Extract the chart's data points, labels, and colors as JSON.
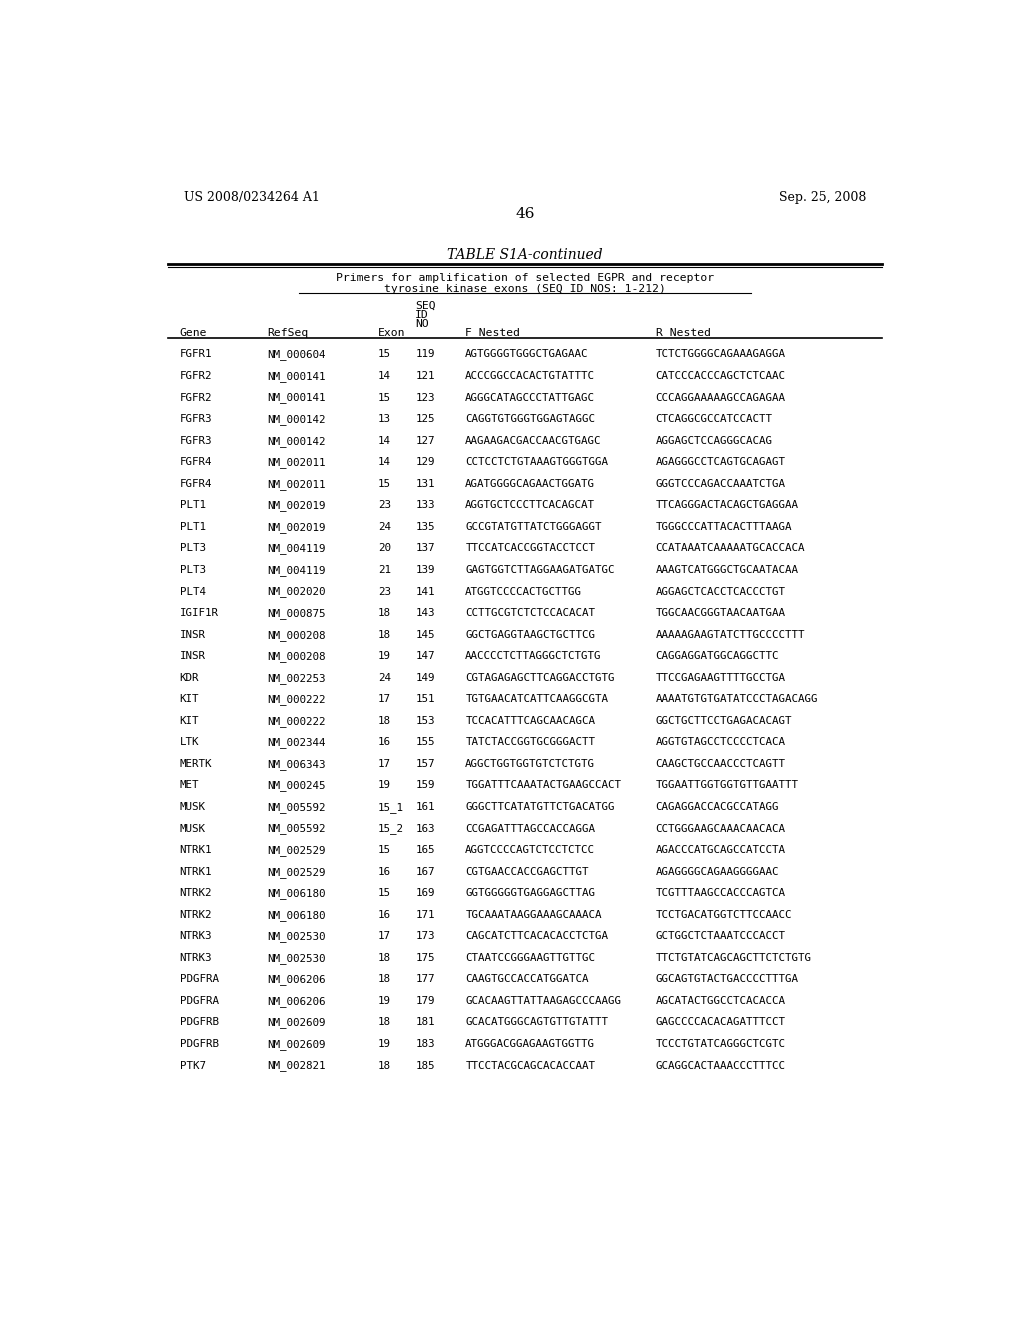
{
  "header_left": "US 2008/0234264 A1",
  "header_right": "Sep. 25, 2008",
  "page_number": "46",
  "table_title": "TABLE S1A-continued",
  "subtitle1": "Primers for amplification of selected EGPR and receptor",
  "subtitle2": "tyrosine kinase exons (SEQ ID NOS: 1-212)",
  "rows": [
    [
      "FGFR1",
      "NM_000604",
      "15",
      "119",
      "AGTGGGGTGGGCTGAGAAC",
      "TCTCTGGGGCAGAAAGAGGA"
    ],
    [
      "FGFR2",
      "NM_000141",
      "14",
      "121",
      "ACCCGGCCACACTGTATTTC",
      "CATCCCACCCAGCTCTCAAC"
    ],
    [
      "FGFR2",
      "NM_000141",
      "15",
      "123",
      "AGGGCATAGCCCTATTGAGC",
      "CCCAGGAAAAAGCCAGAGAA"
    ],
    [
      "FGFR3",
      "NM_000142",
      "13",
      "125",
      "CAGGTGTGGGTGGAGTAGGC",
      "CTCAGGCGCCATCCACTT"
    ],
    [
      "FGFR3",
      "NM_000142",
      "14",
      "127",
      "AAGAAGACGACCAACGTGAGC",
      "AGGAGCTCCAGGGCACAG"
    ],
    [
      "FGFR4",
      "NM_002011",
      "14",
      "129",
      "CCTCCTCTGTAAAGTGGGTGGA",
      "AGAGGGCCTCAGTGCAGAGT"
    ],
    [
      "FGFR4",
      "NM_002011",
      "15",
      "131",
      "AGATGGGGCAGAACTGGATG",
      "GGGTCCCAGACCAAATCTGA"
    ],
    [
      "PLT1",
      "NM_002019",
      "23",
      "133",
      "AGGTGCTCCCTTCACAGCAT",
      "TTCAGGGACTACAGCTGAGGAA"
    ],
    [
      "PLT1",
      "NM_002019",
      "24",
      "135",
      "GCCGTATGTTATCTGGGAGGT",
      "TGGGCCCATTACACTTTAAGA"
    ],
    [
      "PLT3",
      "NM_004119",
      "20",
      "137",
      "TTCCATCACCGGTACCTCCT",
      "CCATAAATCAAAAATGCACCACA"
    ],
    [
      "PLT3",
      "NM_004119",
      "21",
      "139",
      "GAGTGGTCTTAGGAAGATGATGC",
      "AAAGTCATGGGCTGCAATACAA"
    ],
    [
      "PLT4",
      "NM_002020",
      "23",
      "141",
      "ATGGTCCCCACTGCTTGG",
      "AGGAGCTCACCTCACCCTGT"
    ],
    [
      "IGIF1R",
      "NM_000875",
      "18",
      "143",
      "CCTTGCGTCTCTCCACACAT",
      "TGGCAACGGGTAACAATGAA"
    ],
    [
      "INSR",
      "NM_000208",
      "18",
      "145",
      "GGCTGAGGTAAGCTGCTTCG",
      "AAAAAGAAGTATCTTGCCCCTTT"
    ],
    [
      "INSR",
      "NM_000208",
      "19",
      "147",
      "AACCCCTCTTAGGGCTCTGTG",
      "CAGGAGGATGGCAGGCTTC"
    ],
    [
      "KDR",
      "NM_002253",
      "24",
      "149",
      "CGTAGAGAGCTTCAGGACCTGTG",
      "TTCCGAGAAGTTTTGCCTGA"
    ],
    [
      "KIT",
      "NM_000222",
      "17",
      "151",
      "TGTGAACATCATTCAAGGCGTA",
      "AAAATGTGTGATATCCCTAGACAGG"
    ],
    [
      "KIT",
      "NM_000222",
      "18",
      "153",
      "TCCACATTTCAGCAACAGCA",
      "GGCTGCTTCCTGAGACACAGT"
    ],
    [
      "LTK",
      "NM_002344",
      "16",
      "155",
      "TATCTACCGGTGCGGGACTT",
      "AGGTGTAGCCTCCCCTCACA"
    ],
    [
      "MERTK",
      "NM_006343",
      "17",
      "157",
      "AGGCTGGTGGTGTCTCTGTG",
      "CAAGCTGCCAACCCTCAGTT"
    ],
    [
      "MET",
      "NM_000245",
      "19",
      "159",
      "TGGATTTCAAATACTGAAGCCACT",
      "TGGAATTGGTGGTGTTGAATTT"
    ],
    [
      "MUSK",
      "NM_005592",
      "15_1",
      "161",
      "GGGCTTCATATGTTCTGACATGG",
      "CAGAGGACCACGCCATAGG"
    ],
    [
      "MUSK",
      "NM_005592",
      "15_2",
      "163",
      "CCGAGATTTAGCCACCAGGA",
      "CCTGGGAAGCAAACAACACA"
    ],
    [
      "NTRK1",
      "NM_002529",
      "15",
      "165",
      "AGGTCCCCAGTCTCCTCTCC",
      "AGACCCATGCAGCCATCCTA"
    ],
    [
      "NTRK1",
      "NM_002529",
      "16",
      "167",
      "CGTGAACCACCGAGCTTGT",
      "AGAGGGGCAGAAGGGGAAC"
    ],
    [
      "NTRK2",
      "NM_006180",
      "15",
      "169",
      "GGTGGGGGTGAGGAGCTTAG",
      "TCGTTTAAGCCACCCAGTCA"
    ],
    [
      "NTRK2",
      "NM_006180",
      "16",
      "171",
      "TGCAAATAAGGAAAGCAAACA",
      "TCCTGACATGGTCTTCCAACC"
    ],
    [
      "NTRK3",
      "NM_002530",
      "17",
      "173",
      "CAGCATCTTCACACACCTCTGA",
      "GCTGGCTCTAAATCCCACCT"
    ],
    [
      "NTRK3",
      "NM_002530",
      "18",
      "175",
      "CTAATCCGGGAAGTTGTTGC",
      "TTCTGTATCAGCAGCTTCTCTGTG"
    ],
    [
      "PDGFRA",
      "NM_006206",
      "18",
      "177",
      "CAAGTGCCACCATGGATCA",
      "GGCAGTGTACTGACCCCTTTGA"
    ],
    [
      "PDGFRA",
      "NM_006206",
      "19",
      "179",
      "GCACAAGTTATTAAGAGCCCAAGG",
      "AGCATACTGGCCTCACACCA"
    ],
    [
      "PDGFRB",
      "NM_002609",
      "18",
      "181",
      "GCACATGGGCAGTGTTGTATTT",
      "GAGCCCCACACAGATTTCCT"
    ],
    [
      "PDGFRB",
      "NM_002609",
      "19",
      "183",
      "ATGGGACGGAGAAGTGGTTG",
      "TCCCTGTATCAGGGCTCGTC"
    ],
    [
      "PTK7",
      "NM_002821",
      "18",
      "185",
      "TTCCTACGCAGCACACCAAT",
      "GCAGGCACTAAACCCTTTCC"
    ]
  ]
}
